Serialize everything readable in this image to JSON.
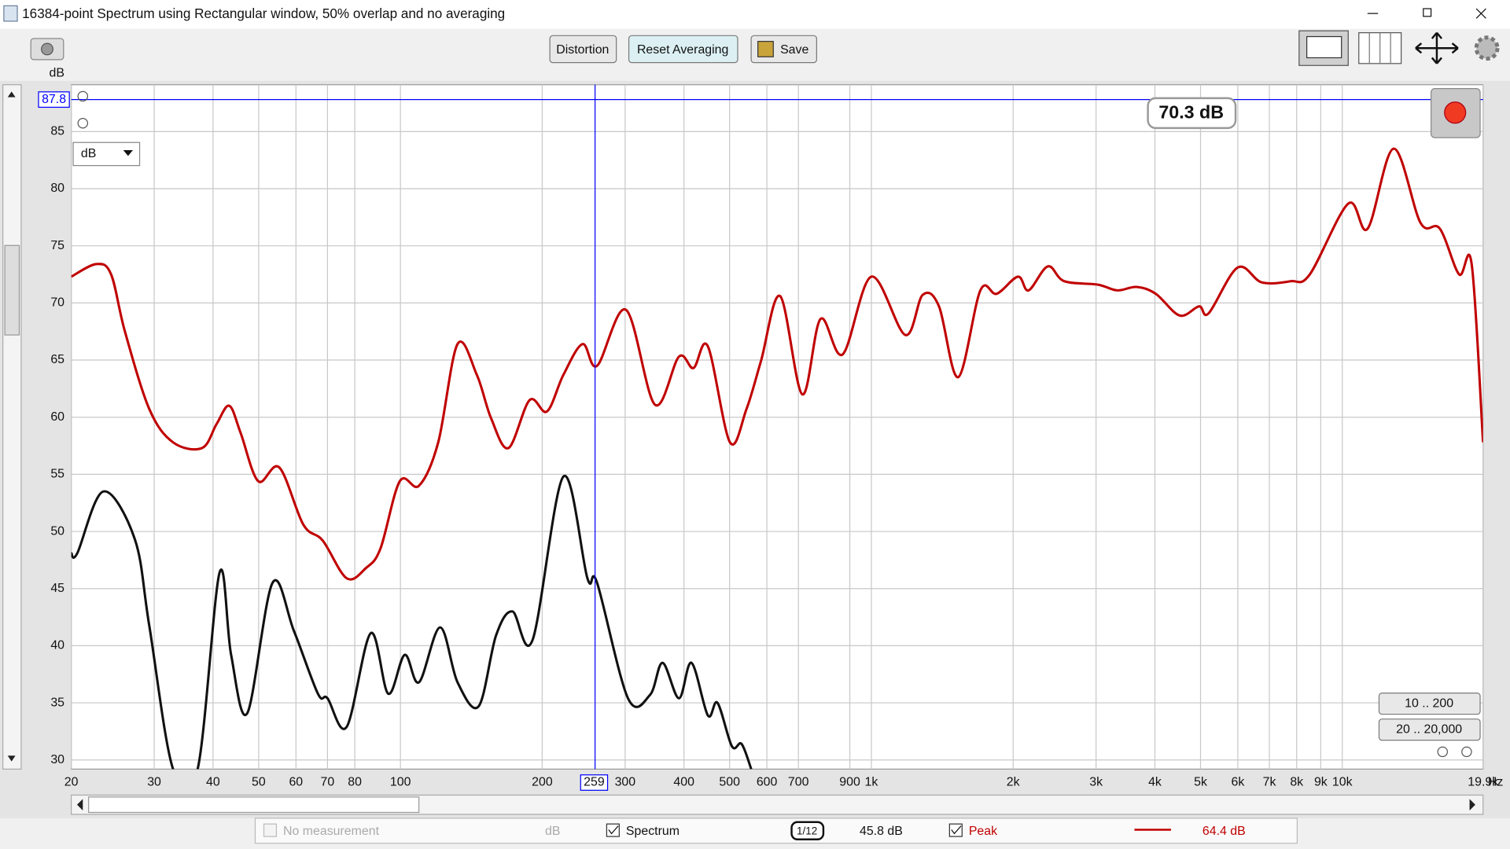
{
  "window": {
    "title": "16384-point Spectrum using Rectangular window, 50% overlap and no averaging"
  },
  "toolbar": {
    "buttons": [
      "Distortion",
      "Reset Averaging",
      "Save"
    ]
  },
  "controls": {
    "unit_select": "dB",
    "ranges": [
      "10 .. 200",
      "20 .. 20,000"
    ]
  },
  "chart_data": {
    "type": "line",
    "x_scale": "log",
    "y_unit": "dB",
    "x_unit": "Hz",
    "grid": true,
    "xlim": [
      20,
      19900
    ],
    "ylim": [
      29.2,
      89.1
    ],
    "xticks": [
      20,
      30,
      40,
      50,
      60,
      70,
      80,
      100,
      200,
      300,
      400,
      500,
      600,
      700,
      900,
      {
        "value": 1000,
        "label": "1k"
      },
      {
        "value": 2000,
        "label": "2k"
      },
      {
        "value": 3000,
        "label": "3k"
      },
      {
        "value": 4000,
        "label": "4k"
      },
      {
        "value": 5000,
        "label": "5k"
      },
      {
        "value": 6000,
        "label": "6k"
      },
      {
        "value": 7000,
        "label": "7k"
      },
      {
        "value": 8000,
        "label": "8k"
      },
      {
        "value": 9000,
        "label": "9k"
      },
      {
        "value": 10000,
        "label": "10k"
      },
      {
        "value": 19900,
        "label": "19.9k"
      }
    ],
    "yticks": [
      30,
      35,
      40,
      45,
      50,
      55,
      60,
      65,
      70,
      75,
      80,
      85
    ],
    "cursor": {
      "x": 259,
      "y": 87.8,
      "readout": "70.3 dB",
      "color": "#0000ff"
    },
    "series": [
      {
        "name": "Peak",
        "color": "#c00000",
        "reading": "64.4 dB",
        "x": [
          20,
          22.6,
          24.3,
          26.0,
          29.3,
          32.9,
          37.9,
          40.7,
          43.3,
          45.8,
          49.9,
          55.3,
          62.2,
          68.4,
          76.9,
          84.5,
          90.7,
          99.7,
          109.5,
          120.3,
          132.2,
          145.3,
          155.8,
          169.6,
          188.1,
          204.7,
          221.8,
          243.7,
          261.6,
          301.3,
          347.0,
          390.3,
          419.0,
          449.6,
          500.9,
          542.9,
          582.8,
          640.2,
          713.4,
          780.0,
          869.1,
          1000,
          1180,
          1285,
          1392,
          1529,
          1704,
          1846,
          2048,
          2157,
          2370,
          2568,
          3028,
          3327,
          3656,
          4017,
          4516,
          4964,
          5204,
          5995,
          6745,
          7764,
          8531,
          10300,
          11318,
          12854,
          14664,
          16111,
          17704,
          18824,
          19900
        ],
        "values": [
          72.3,
          73.4,
          72.5,
          67.5,
          60.7,
          57.8,
          57.3,
          59.4,
          61.0,
          58.6,
          54.4,
          55.6,
          50.6,
          49.2,
          45.9,
          46.8,
          48.5,
          54.4,
          54.0,
          57.8,
          66.4,
          63.7,
          59.9,
          57.3,
          61.5,
          60.5,
          63.7,
          66.4,
          64.5,
          69.4,
          61.1,
          65.3,
          64.3,
          66.2,
          57.8,
          60.7,
          64.9,
          70.6,
          62.0,
          68.6,
          65.5,
          72.3,
          67.2,
          70.7,
          69.7,
          63.5,
          71.1,
          70.8,
          72.3,
          71.1,
          73.2,
          71.9,
          71.6,
          71.1,
          71.4,
          70.8,
          68.9,
          69.7,
          69.1,
          73.1,
          71.8,
          71.9,
          72.5,
          78.7,
          76.5,
          83.5,
          77.0,
          76.5,
          72.5,
          73.4,
          57.8
        ]
      },
      {
        "name": "Spectrum",
        "color": "#111111",
        "reading": "45.8 dB",
        "smoothing": "1/12",
        "x": [
          20,
          20.6,
          23.4,
          27.3,
          29.3,
          32.9,
          37.1,
          41.3,
          43.7,
          47.3,
          53.5,
          59.4,
          66.8,
          70.0,
          76.9,
          86.5,
          94.2,
          102.1,
          109.5,
          121.4,
          132.2,
          146.6,
          159.6,
          172.9,
          190.8,
          221.8,
          249.5,
          261.6,
          304.2,
          338.9,
          360.3,
          390.3,
          415.0,
          449.6,
          471.3,
          505.7,
          530.2,
          555.8
        ],
        "values": [
          48.1,
          48.1,
          53.5,
          49.3,
          41.7,
          29.2,
          29.2,
          46.4,
          39.2,
          34.1,
          45.5,
          41.3,
          35.8,
          35.4,
          32.9,
          41.1,
          35.8,
          39.2,
          36.8,
          41.6,
          36.8,
          34.7,
          40.9,
          43.0,
          40.5,
          54.8,
          45.9,
          45.5,
          35.4,
          35.7,
          38.5,
          35.4,
          38.5,
          33.9,
          35.0,
          31.2,
          31.4,
          29.2
        ]
      }
    ]
  },
  "legend_bar": {
    "empty_label": "No measurement",
    "empty_unit": "dB"
  }
}
